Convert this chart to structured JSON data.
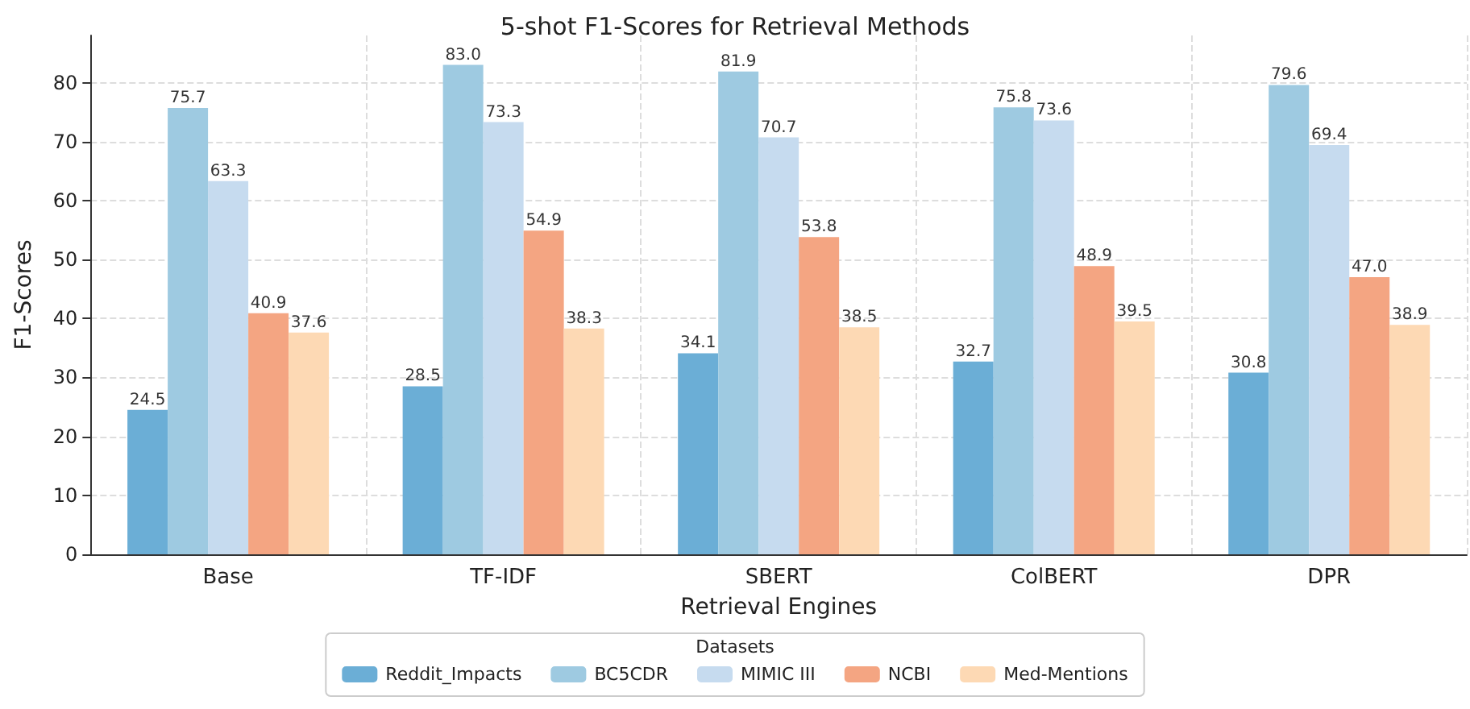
{
  "chart_data": {
    "type": "bar",
    "title": "5-shot F1-Scores for Retrieval Methods",
    "xlabel": "Retrieval Engines",
    "ylabel": "F1-Scores",
    "legend_title": "Datasets",
    "categories": [
      "Base",
      "TF-IDF",
      "SBERT",
      "ColBERT",
      "DPR"
    ],
    "series": [
      {
        "name": "Reddit_Impacts",
        "color": "#6baed6",
        "values": [
          24.5,
          28.5,
          34.1,
          32.7,
          30.8
        ],
        "value_labels": [
          "24.5",
          "28.5",
          "34.1",
          "32.7",
          "30.8"
        ]
      },
      {
        "name": "BC5CDR",
        "color": "#9ecae1",
        "values": [
          75.7,
          83.0,
          81.9,
          75.8,
          79.6
        ],
        "value_labels": [
          "75.7",
          "83.0",
          "81.9",
          "75.8",
          "79.6"
        ]
      },
      {
        "name": "MIMIC III",
        "color": "#c6dbef",
        "values": [
          63.3,
          73.3,
          70.7,
          73.6,
          69.4
        ],
        "value_labels": [
          "63.3",
          "73.3",
          "70.7",
          "73.6",
          "69.4"
        ]
      },
      {
        "name": "NCBI",
        "color": "#f4a582",
        "values": [
          40.9,
          54.9,
          53.8,
          48.9,
          47.0
        ],
        "value_labels": [
          "40.9",
          "54.9",
          "53.8",
          "48.9",
          "47.0"
        ]
      },
      {
        "name": "Med-Mentions",
        "color": "#fdd9b4",
        "values": [
          37.6,
          38.3,
          38.5,
          39.5,
          38.9
        ],
        "value_labels": [
          "37.6",
          "38.3",
          "38.5",
          "39.5",
          "38.9"
        ]
      }
    ],
    "ylim": [
      0,
      88
    ],
    "yticks": [
      0,
      10,
      20,
      30,
      40,
      50,
      60,
      70,
      80
    ],
    "grid": true,
    "legend": "bottom"
  }
}
